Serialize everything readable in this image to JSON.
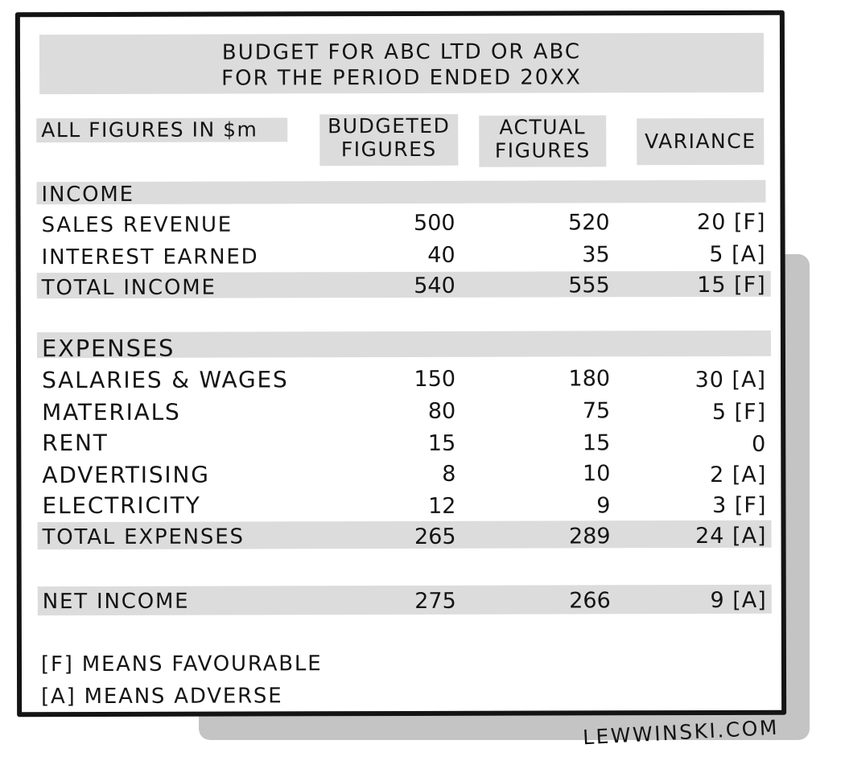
{
  "title": {
    "line1": "BUDGET FOR ABC LTD OR ABC",
    "line2": "FOR THE PERIOD ENDED 20XX"
  },
  "header": {
    "units_label": "ALL FIGURES IN $m",
    "budgeted_line1": "BUDGETED",
    "budgeted_line2": "FIGURES",
    "actual_line1": "ACTUAL",
    "actual_line2": "FIGURES",
    "variance": "VARIANCE"
  },
  "income": {
    "section_label": "INCOME",
    "rows": [
      {
        "label": "SALES REVENUE",
        "budgeted": "500",
        "actual": "520",
        "variance": "20 [F]"
      },
      {
        "label": "INTEREST EARNED",
        "budgeted": "40",
        "actual": "35",
        "variance": "5 [A]"
      }
    ],
    "total": {
      "label": "TOTAL INCOME",
      "budgeted": "540",
      "actual": "555",
      "variance": "15 [F]"
    }
  },
  "expenses": {
    "section_label": "EXPENSES",
    "rows": [
      {
        "label": "SALARIES & WAGES",
        "budgeted": "150",
        "actual": "180",
        "variance": "30 [A]"
      },
      {
        "label": "MATERIALS",
        "budgeted": "80",
        "actual": "75",
        "variance": "5 [F]"
      },
      {
        "label": "RENT",
        "budgeted": "15",
        "actual": "15",
        "variance": "0"
      },
      {
        "label": "ADVERTISING",
        "budgeted": "8",
        "actual": "10",
        "variance": "2 [A]"
      },
      {
        "label": "ELECTRICITY",
        "budgeted": "12",
        "actual": "9",
        "variance": "3 [F]"
      }
    ],
    "total": {
      "label": "TOTAL EXPENSES",
      "budgeted": "265",
      "actual": "289",
      "variance": "24 [A]"
    }
  },
  "net_income": {
    "label": "NET INCOME",
    "budgeted": "275",
    "actual": "266",
    "variance": "9 [A]"
  },
  "legend": {
    "favourable": "[F] MEANS FAVOURABLE",
    "adverse": "[A] MEANS ADVERSE"
  },
  "signature": "LEWWINSKI.COM",
  "colors": {
    "ink": "#141414",
    "highlight": "#dcdcdc",
    "shadow": "#c4c4c4",
    "paper": "#ffffff"
  }
}
